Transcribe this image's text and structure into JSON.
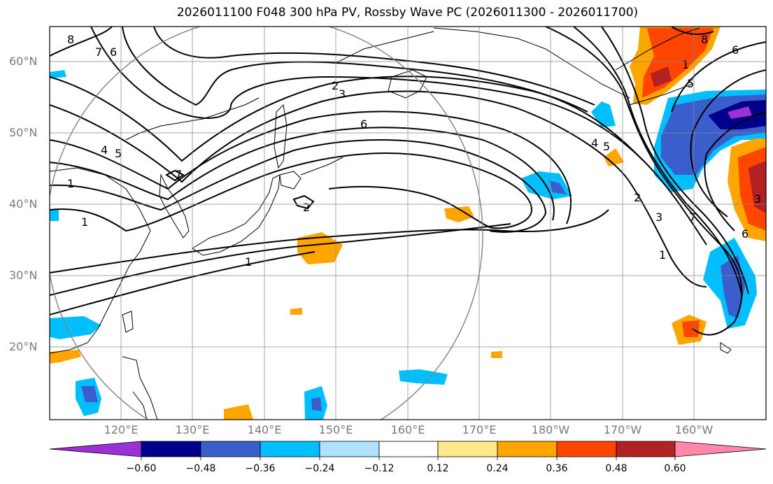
{
  "title": "2026011100 F048 300 hPa PV, Rossby Wave PC (2026011300 - 2026011700)",
  "lat_labels": [
    "60°N",
    "50°N",
    "40°N",
    "30°N",
    "20°N"
  ],
  "lon_labels": [
    "120°E",
    "130°E",
    "140°E",
    "150°E",
    "160°E",
    "170°E",
    "180°W",
    "170°W",
    "160°W"
  ],
  "colorbar": {
    "ticks": [
      "−0.60",
      "−0.48",
      "−0.36",
      "−0.24",
      "−0.12",
      "0.12",
      "0.24",
      "0.36",
      "0.48",
      "0.60"
    ],
    "colors": [
      "#9b30d6",
      "#00008b",
      "#3a5fcd",
      "#00bfff",
      "#b0e2ff",
      "#ffffff",
      "#ffe98a",
      "#ffa500",
      "#ff4500",
      "#b22222",
      "#ff88aa"
    ]
  },
  "contour_labels": [
    "8",
    "7",
    "6",
    "2",
    "3",
    "6",
    "5",
    "4",
    "1",
    "1",
    "7",
    "2",
    "1",
    "8",
    "6",
    "1",
    "5",
    "4",
    "5",
    "2",
    "3",
    "7",
    "1",
    "6",
    "3"
  ],
  "map": {
    "projection": "PlateCarree",
    "lon_range": [
      110,
      210
    ],
    "lat_range": [
      10,
      65
    ],
    "variable": "300 hPa PV",
    "shading": "Rossby Wave PC"
  }
}
